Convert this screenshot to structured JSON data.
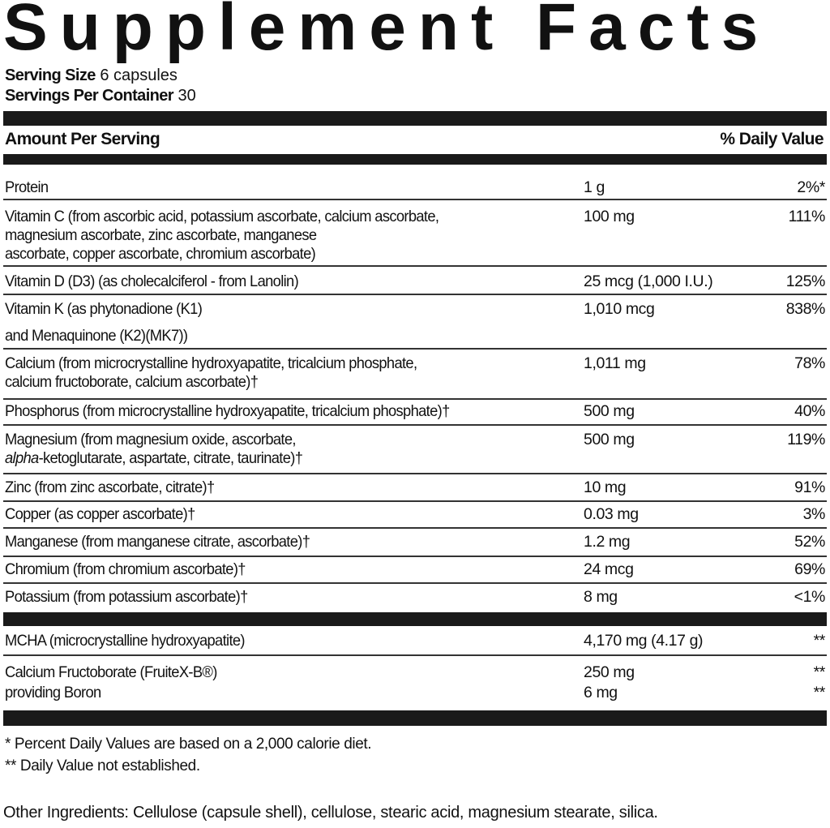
{
  "title": "Supplement Facts",
  "serving": {
    "size_label": "Serving Size",
    "size_value": "6 capsules",
    "per_container_label": "Servings Per Container",
    "per_container_value": "30"
  },
  "header": {
    "amount": "Amount Per Serving",
    "dv": "% Daily Value"
  },
  "rows": [
    {
      "name": "Protein",
      "amount": "1 g",
      "dv": "2%*"
    },
    {
      "name": "Vitamin C (from ascorbic acid, potassium ascorbate, calcium ascorbate,\nmagnesium ascorbate, zinc ascorbate, manganese\nascorbate, copper ascorbate, chromium ascorbate)",
      "amount": "100 mg",
      "dv": "111%"
    },
    {
      "name": "Vitamin D (D3) (as cholecalciferol - from Lanolin)",
      "amount": "25 mcg (1,000 I.U.)",
      "dv": "125%"
    },
    {
      "name": "Vitamin K (as phytonadione (K1)\nand Menaquinone (K2)(MK7))",
      "amount": "1,010 mcg",
      "dv": "838%"
    },
    {
      "name": "Calcium (from microcrystalline hydroxyapatite, tricalcium phosphate,\ncalcium fructoborate, calcium ascorbate)†",
      "amount": "1,011 mg",
      "dv": "78%"
    },
    {
      "name": "Phosphorus (from microcrystalline hydroxyapatite, tricalcium phosphate)†",
      "amount": "500 mg",
      "dv": "40%"
    },
    {
      "name_line1": "Magnesium (from magnesium oxide, ascorbate,",
      "name_italic": "alpha",
      "name_rest": "-ketoglutarate, aspartate, citrate, taurinate)†",
      "amount": "500 mg",
      "dv": "119%"
    },
    {
      "name": "Zinc (from zinc ascorbate, citrate)†",
      "amount": "10 mg",
      "dv": "91%"
    },
    {
      "name": "Copper (as copper ascorbate)†",
      "amount": "0.03 mg",
      "dv": "3%"
    },
    {
      "name": "Manganese (from manganese citrate, ascorbate)†",
      "amount": "1.2 mg",
      "dv": "52%"
    },
    {
      "name": "Chromium (from chromium ascorbate)†",
      "amount": "24 mcg",
      "dv": "69%"
    },
    {
      "name": "Potassium (from potassium ascorbate)†",
      "amount": "8 mg",
      "dv": "<1%"
    }
  ],
  "other_rows": [
    {
      "name": "MCHA (microcrystalline hydroxyapatite)",
      "amount": "4,170 mg (4.17 g)",
      "dv": "**"
    },
    {
      "name": "Calcium Fructoborate (FruiteX-B®)\n        providing Boron",
      "amount": "250 mg\n6 mg",
      "dv": "**\n**"
    }
  ],
  "footnotes": [
    "* Percent Daily Values are based on a 2,000 calorie diet.",
    "** Daily Value not established."
  ],
  "other_ingredients": "Other Ingredients: Cellulose (capsule shell), cellulose, stearic acid, magnesium stearate, silica."
}
